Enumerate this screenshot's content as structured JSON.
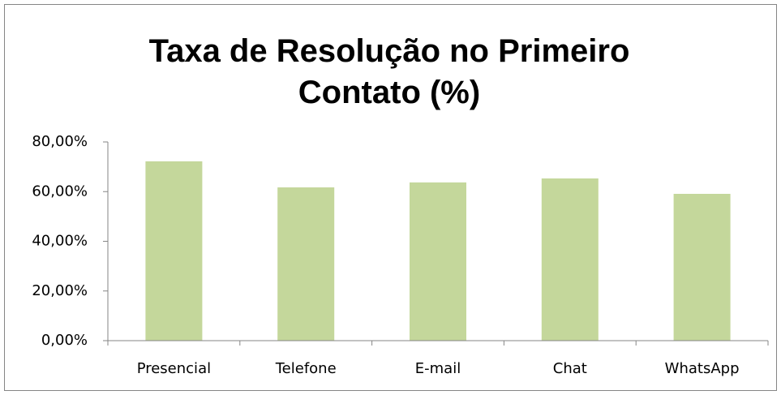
{
  "chart_data": {
    "type": "bar",
    "title": "Taxa de Resolução no Primeiro Contato (%)",
    "categories": [
      "Presencial",
      "Telefone",
      "E-mail",
      "Chat",
      "WhatsApp"
    ],
    "values": [
      72.2,
      61.7,
      63.7,
      65.3,
      59.1
    ],
    "color": "#c4d79b",
    "ylim": [
      0,
      80
    ],
    "yticks": [
      {
        "value": 0,
        "label": "0,00%"
      },
      {
        "value": 20,
        "label": "20,00%"
      },
      {
        "value": 40,
        "label": "40,00%"
      },
      {
        "value": 60,
        "label": "60,00%"
      },
      {
        "value": 80,
        "label": "80,00%"
      }
    ],
    "grid": false
  }
}
